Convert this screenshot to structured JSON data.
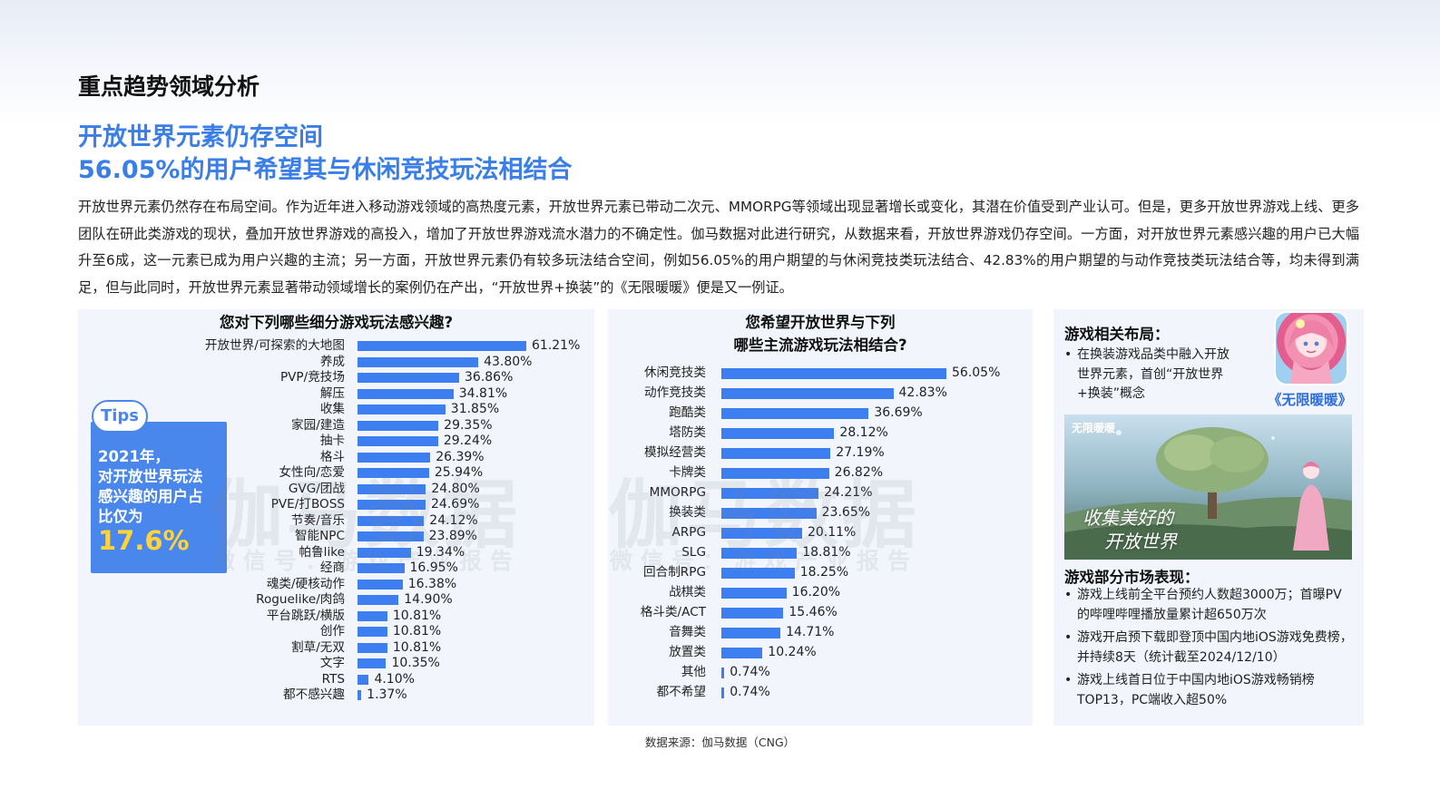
{
  "page": {
    "section_title": "重点趋势领域分析",
    "headline_line1": "开放世界元素仍存空间",
    "headline_line2": "56.05%的用户希望其与休闲竞技玩法相结合",
    "intro": "开放世界元素仍然存在布局空间。作为近年进入移动游戏领域的高热度元素，开放世界元素已带动二次元、MMORPG等领域出现显著增长或变化，其潜在价值受到产业认可。但是，更多开放世界游戏上线、更多团队在研此类游戏的现状，叠加开放世界游戏的高投入，增加了开放世界游戏流水潜力的不确定性。伽马数据对此进行研究，从数据来看，开放世界游戏仍存空间。一方面，对开放世界元素感兴趣的用户已大幅升至6成，这一元素已成为用户兴趣的主流；另一方面，开放世界元素仍有较多玩法结合空间，例如56.05%的用户期望的与休闲竞技类玩法结合、42.83%的用户期望的与动作竞技类玩法结合等，均未得到满足，但与此同时，开放世界元素显著带动领域增长的案例仍在产出，“开放世界+换装”的《无限暖暖》便是又一例证。",
    "source": "数据来源：伽马数据（CNG）"
  },
  "tips": {
    "badge": "Tips",
    "line1": "2021年，",
    "line2": "对开放世界玩法",
    "line3": "感兴趣的用户占",
    "line4": "比仅为",
    "big": "17.6%"
  },
  "watermark": {
    "big": "伽马数据",
    "small": "微信号：游戏产业报告"
  },
  "chart_data": [
    {
      "type": "bar",
      "orientation": "horizontal",
      "title": "您对下列哪些细分游戏玩法感兴趣?",
      "categories": [
        "开放世界/可探索的大地图",
        "养成",
        "PVP/竞技场",
        "解压",
        "收集",
        "家园/建造",
        "抽卡",
        "格斗",
        "女性向/恋爱",
        "GVG/团战",
        "PVE/打BOSS",
        "节奏/音乐",
        "智能NPC",
        "帕鲁like",
        "经商",
        "魂类/硬核动作",
        "Roguelike/肉鸽",
        "平台跳跃/横版",
        "创作",
        "割草/无双",
        "文字",
        "RTS",
        "都不感兴趣"
      ],
      "values": [
        61.21,
        43.8,
        36.86,
        34.81,
        31.85,
        29.35,
        29.24,
        26.39,
        25.94,
        24.8,
        24.69,
        24.12,
        23.89,
        19.34,
        16.95,
        16.38,
        14.9,
        10.81,
        10.81,
        10.81,
        10.35,
        4.1,
        1.37
      ],
      "labels": [
        "61.21%",
        "43.80%",
        "36.86%",
        "34.81%",
        "31.85%",
        "29.35%",
        "29.24%",
        "26.39%",
        "25.94%",
        "24.80%",
        "24.69%",
        "24.12%",
        "23.89%",
        "19.34%",
        "16.95%",
        "16.38%",
        "14.90%",
        "10.81%",
        "10.81%",
        "10.81%",
        "10.35%",
        "4.10%",
        "1.37%"
      ],
      "color": "#3d7ff0"
    },
    {
      "type": "bar",
      "orientation": "horizontal",
      "title_line1": "您希望开放世界与下列",
      "title_line2": "哪些主流游戏玩法相结合?",
      "categories": [
        "休闲竞技类",
        "动作竞技类",
        "跑酷类",
        "塔防类",
        "模拟经营类",
        "卡牌类",
        "MMORPG",
        "换装类",
        "ARPG",
        "SLG",
        "回合制RPG",
        "战棋类",
        "格斗类/ACT",
        "音舞类",
        "放置类",
        "其他",
        "都不希望"
      ],
      "values": [
        56.05,
        42.83,
        36.69,
        28.12,
        27.19,
        26.82,
        24.21,
        23.65,
        20.11,
        18.81,
        18.25,
        16.2,
        15.46,
        14.71,
        10.24,
        0.74,
        0.74
      ],
      "labels": [
        "56.05%",
        "42.83%",
        "36.69%",
        "28.12%",
        "27.19%",
        "26.82%",
        "24.21%",
        "23.65%",
        "20.11%",
        "18.81%",
        "18.25%",
        "16.20%",
        "15.46%",
        "14.71%",
        "10.24%",
        "0.74%",
        "0.74%"
      ],
      "color": "#3d7ff0"
    }
  ],
  "side": {
    "layout_heading": "游戏相关布局：",
    "layout_bullet": "在换装游戏品类中融入开放世界元素，首创“开放世界+换装”概念",
    "game_name": "《无限暖暖》",
    "banner_logo": "无限暖暖",
    "banner_text1": "收集美好的",
    "banner_text2": "开放世界",
    "market_heading": "游戏部分市场表现：",
    "market_bullets": [
      "游戏上线前全平台预约人数超3000万；首曝PV的哔哩哔哩播放量累计超650万次",
      "游戏开启预下载即登顶中国内地iOS游戏免费榜，并持续8天（统计截至2024/12/10）",
      "游戏上线首日位于中国内地iOS游戏畅销榜TOP13，PC端收入超50%"
    ]
  }
}
